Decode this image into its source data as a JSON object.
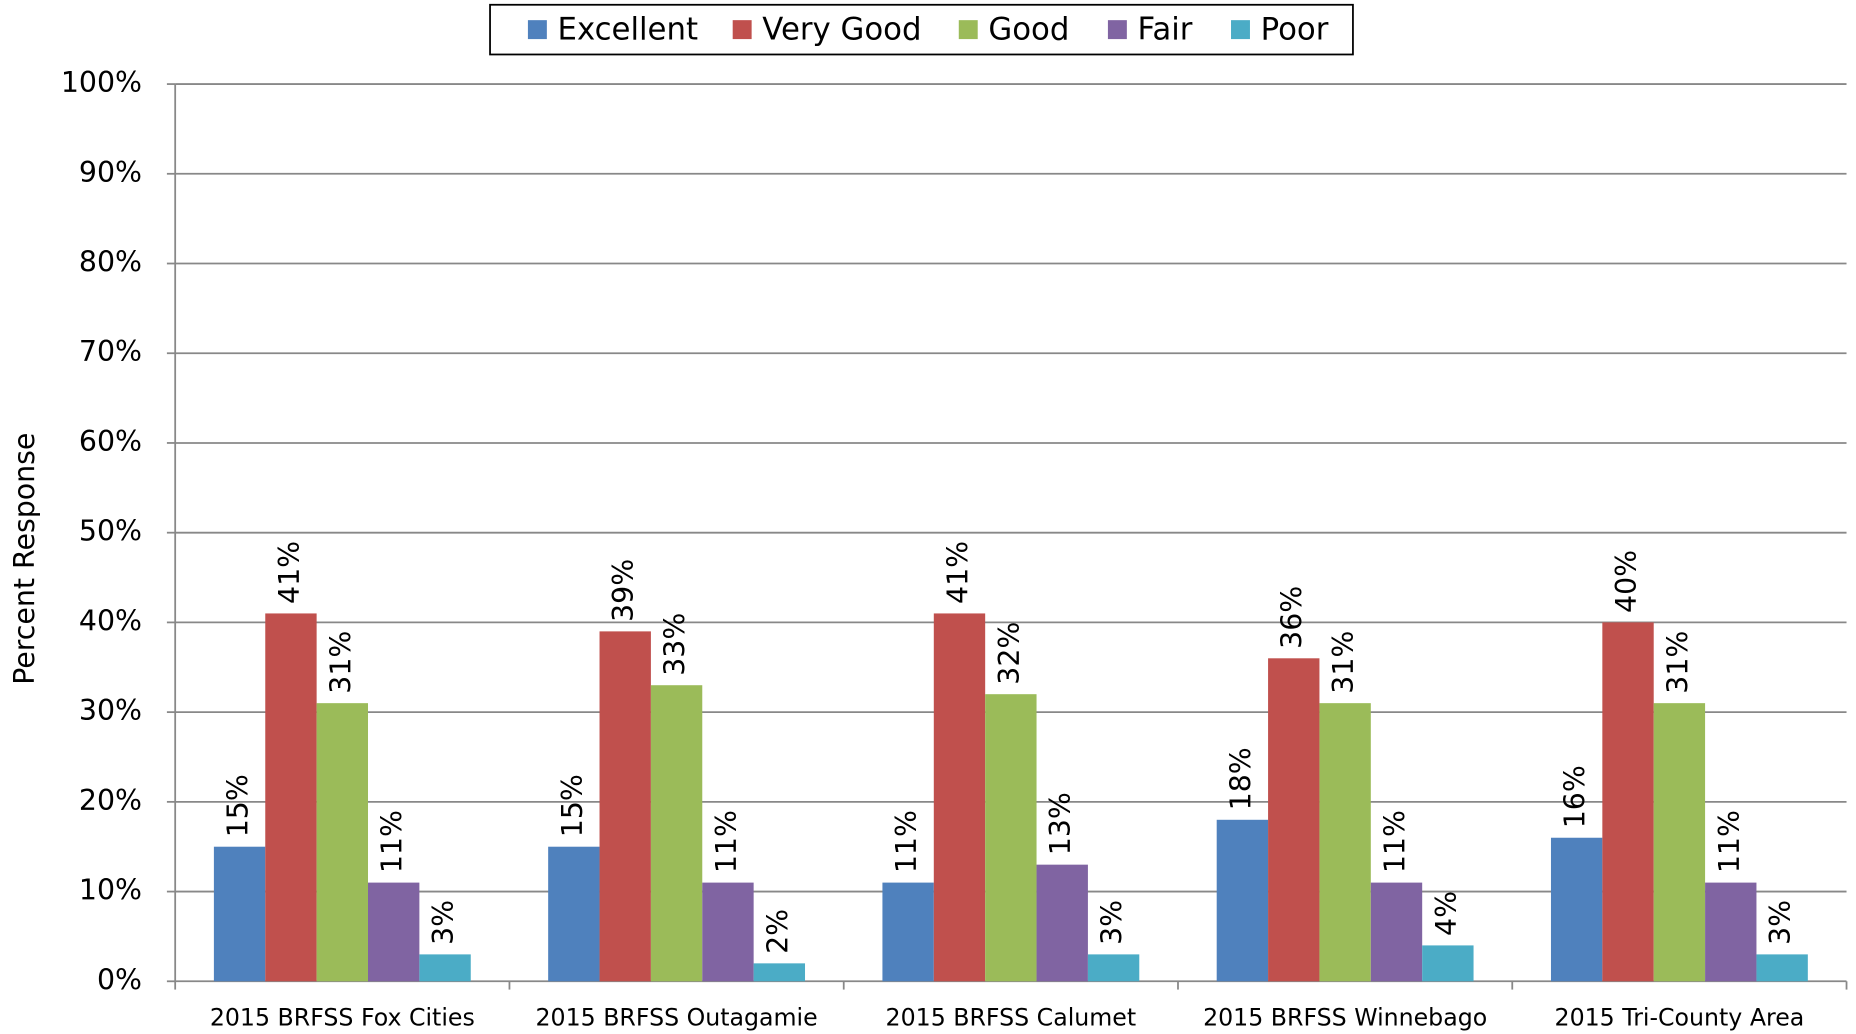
{
  "chart_data": {
    "type": "bar",
    "y_label": "Percent Response",
    "categories": [
      "2015 BRFSS Fox Cities",
      "2015 BRFSS Outagamie",
      "2015 BRFSS Calumet",
      "2015 BRFSS Winnebago",
      "2015 Tri-County Area"
    ],
    "series": [
      {
        "name": "Excellent",
        "color": "#4f81bd",
        "values": [
          15,
          15,
          11,
          18,
          16
        ],
        "value_labels": [
          "15%",
          "15%",
          "11%",
          "18%",
          "16%"
        ]
      },
      {
        "name": "Very Good",
        "color": "#c0504d",
        "values": [
          41,
          39,
          41,
          36,
          40
        ],
        "value_labels": [
          "41%",
          "39%",
          "41%",
          "36%",
          "40%"
        ]
      },
      {
        "name": "Good",
        "color": "#9bbb59",
        "values": [
          31,
          33,
          32,
          31,
          31
        ],
        "value_labels": [
          "31%",
          "33%",
          "32%",
          "31%",
          "31%"
        ]
      },
      {
        "name": "Fair",
        "color": "#8064a2",
        "values": [
          11,
          11,
          13,
          11,
          11
        ],
        "value_labels": [
          "11%",
          "11%",
          "13%",
          "11%",
          "11%"
        ]
      },
      {
        "name": "Poor",
        "color": "#4bacc6",
        "values": [
          3,
          2,
          3,
          4,
          3
        ],
        "value_labels": [
          "3%",
          "2%",
          "3%",
          "4%",
          "3%"
        ]
      }
    ],
    "ylim": [
      0,
      100
    ],
    "yticks": [
      {
        "value": 0,
        "label": "0%"
      },
      {
        "value": 10,
        "label": "10%"
      },
      {
        "value": 20,
        "label": "20%"
      },
      {
        "value": 30,
        "label": "30%"
      },
      {
        "value": 40,
        "label": "40%"
      },
      {
        "value": 50,
        "label": "50%"
      },
      {
        "value": 60,
        "label": "60%"
      },
      {
        "value": 70,
        "label": "70%"
      },
      {
        "value": 80,
        "label": "80%"
      },
      {
        "value": 90,
        "label": "90%"
      },
      {
        "value": 100,
        "label": "100%"
      }
    ],
    "grid": true,
    "legend": "top"
  }
}
